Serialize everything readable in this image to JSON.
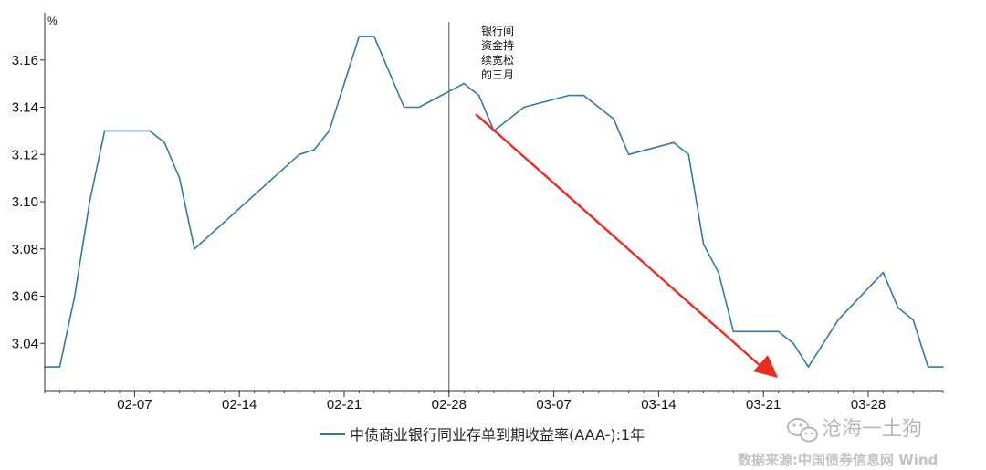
{
  "chart_data": {
    "type": "line",
    "ylabel": "%",
    "ylim": [
      3.02,
      3.18
    ],
    "yticks": [
      3.04,
      3.06,
      3.08,
      3.1,
      3.12,
      3.14,
      3.16
    ],
    "ytick_labels": [
      "3.04",
      "3.06",
      "3.08",
      "3.10",
      "3.12",
      "3.14",
      "3.16"
    ],
    "xlim": [
      "2021-02-01",
      "2021-04-02"
    ],
    "xticks": [
      "2021-02-07",
      "2021-02-14",
      "2021-02-21",
      "2021-02-28",
      "2021-03-07",
      "2021-03-14",
      "2021-03-21",
      "2021-03-28"
    ],
    "xtick_labels": [
      "02-07",
      "02-14",
      "02-21",
      "02-28",
      "03-07",
      "03-14",
      "03-21",
      "03-28"
    ],
    "series": [
      {
        "name": "中债商业银行同业存单到期收益率(AAA-):1年",
        "color": "#2e7ca3",
        "x": [
          "2021-02-01",
          "2021-02-02",
          "2021-02-03",
          "2021-02-04",
          "2021-02-05",
          "2021-02-08",
          "2021-02-09",
          "2021-02-10",
          "2021-02-11",
          "2021-02-18",
          "2021-02-19",
          "2021-02-20",
          "2021-02-22",
          "2021-02-23",
          "2021-02-25",
          "2021-02-26",
          "2021-03-01",
          "2021-03-02",
          "2021-03-03",
          "2021-03-05",
          "2021-03-08",
          "2021-03-09",
          "2021-03-11",
          "2021-03-12",
          "2021-03-15",
          "2021-03-16",
          "2021-03-17",
          "2021-03-18",
          "2021-03-19",
          "2021-03-22",
          "2021-03-23",
          "2021-03-24",
          "2021-03-25",
          "2021-03-26",
          "2021-03-29",
          "2021-03-30",
          "2021-03-31",
          "2021-04-01",
          "2021-04-02"
        ],
        "y": [
          3.03,
          3.03,
          3.06,
          3.1,
          3.13,
          3.13,
          3.125,
          3.11,
          3.08,
          3.12,
          3.122,
          3.13,
          3.17,
          3.17,
          3.14,
          3.14,
          3.15,
          3.145,
          3.13,
          3.14,
          3.145,
          3.145,
          3.135,
          3.12,
          3.125,
          3.12,
          3.082,
          3.07,
          3.045,
          3.045,
          3.04,
          3.03,
          3.04,
          3.05,
          3.07,
          3.055,
          3.05,
          3.03,
          3.03
        ]
      }
    ],
    "vline_date": "2021-02-28",
    "annotation_lines": [
      "银行间",
      "资金持",
      "续宽松",
      "的三月"
    ],
    "arrow_color": "#ee2b22",
    "axis_color": "#333333"
  },
  "watermark": "沧海一土狗",
  "source_note": "数据来源:中国债券信息网 Wind"
}
